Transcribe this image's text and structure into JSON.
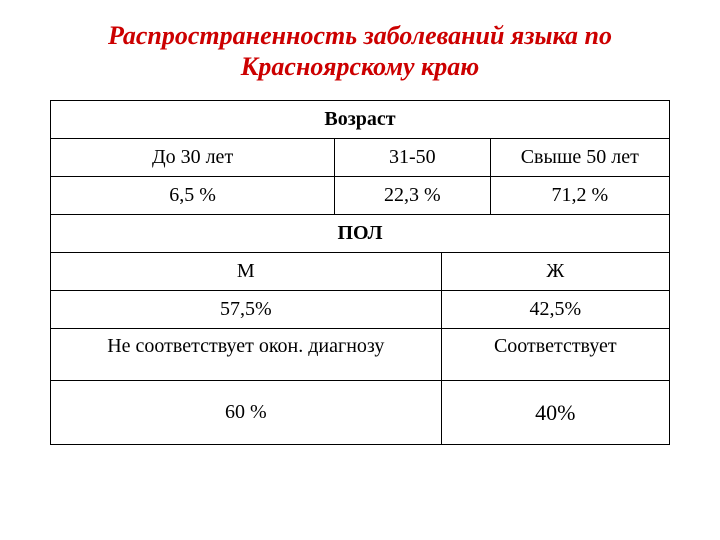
{
  "title": "Распространенность заболеваний языка по Красноярскому краю",
  "age": {
    "header": "Возраст",
    "groups": [
      "До 30 лет",
      "31-50",
      "Свыше 50 лет"
    ],
    "values": [
      "6,5 %",
      "22,3 %",
      "71,2 %"
    ]
  },
  "sex": {
    "header": "ПОЛ",
    "groups": [
      "М",
      "Ж"
    ],
    "values": [
      "57,5%",
      "42,5%"
    ]
  },
  "diagnosis": {
    "groups": [
      "Не соответствует окон. диагнозу",
      "Соответствует"
    ],
    "values": [
      "60 %",
      "40%"
    ]
  },
  "colors": {
    "title_color": "#cc0000",
    "border_color": "#000000",
    "background": "#ffffff",
    "text_color": "#000000"
  },
  "layout": {
    "table_type": "table",
    "columns_count": 6,
    "font_family": "Times New Roman"
  }
}
